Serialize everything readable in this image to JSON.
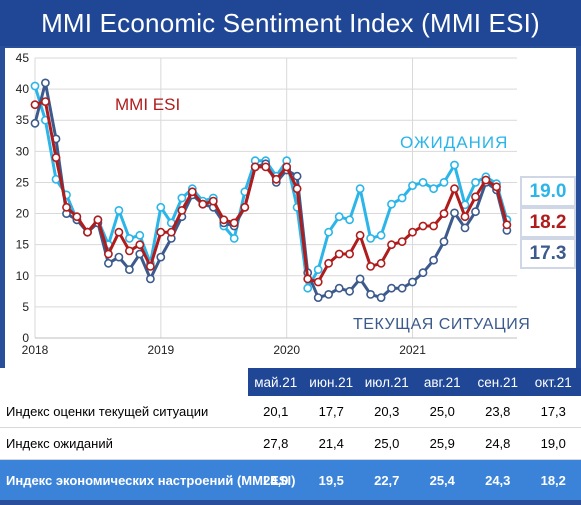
{
  "title": "MMI Economic Sentiment Index (MMI ESI)",
  "colors": {
    "header_bg": "#1f4796",
    "expectations": "#2bb5e8",
    "esi": "#b01c1c",
    "current": "#3c5a8c",
    "summary_row": "#3b83d9"
  },
  "chart_data": {
    "type": "line",
    "ylim": [
      0,
      45
    ],
    "yticks": [
      0,
      5,
      10,
      15,
      20,
      25,
      30,
      35,
      40,
      45
    ],
    "xlim": [
      2018.0,
      2021.83
    ],
    "xtick_labels": [
      "2018",
      "2019",
      "2020",
      "2021"
    ],
    "xtick_values": [
      2018,
      2019,
      2020,
      2021
    ],
    "grid": true,
    "annotations": {
      "esi": "MMI ESI",
      "expectations": "ОЖИДАНИЯ",
      "current": "ТЕКУЩАЯ СИТУАЦИЯ"
    },
    "last_values": [
      "19.0",
      "18.2",
      "17.3"
    ],
    "series": [
      {
        "key": "expectations",
        "x": [
          2018.0,
          2018.083,
          2018.167,
          2018.25,
          2018.333,
          2018.417,
          2018.5,
          2018.583,
          2018.667,
          2018.75,
          2018.833,
          2018.917,
          2019.0,
          2019.083,
          2019.167,
          2019.25,
          2019.333,
          2019.417,
          2019.5,
          2019.583,
          2019.667,
          2019.75,
          2019.833,
          2019.917,
          2020.0,
          2020.083,
          2020.167,
          2020.25,
          2020.333,
          2020.417,
          2020.5,
          2020.583,
          2020.667,
          2020.75,
          2020.833,
          2020.917,
          2021.0,
          2021.083,
          2021.167,
          2021.25,
          2021.333,
          2021.417,
          2021.5,
          2021.583,
          2021.667,
          2021.75
        ],
        "y": [
          40.5,
          35.0,
          25.5,
          23.0,
          19.0,
          17.0,
          19.0,
          15.0,
          20.5,
          16.0,
          16.5,
          12.0,
          21.0,
          18.5,
          22.5,
          24.0,
          22.0,
          22.5,
          18.0,
          16.0,
          23.5,
          28.5,
          28.5,
          26.0,
          28.5,
          21.0,
          8.0,
          11.0,
          17.0,
          19.5,
          19.0,
          24.0,
          16.0,
          16.5,
          21.5,
          22.5,
          24.5,
          25.0,
          24.0,
          25.0,
          27.8,
          21.4,
          25.0,
          25.9,
          24.8,
          19.0
        ]
      },
      {
        "key": "esi",
        "x": [
          2018.0,
          2018.083,
          2018.167,
          2018.25,
          2018.333,
          2018.417,
          2018.5,
          2018.583,
          2018.667,
          2018.75,
          2018.833,
          2018.917,
          2019.0,
          2019.083,
          2019.167,
          2019.25,
          2019.333,
          2019.417,
          2019.5,
          2019.583,
          2019.667,
          2019.75,
          2019.833,
          2019.917,
          2020.0,
          2020.083,
          2020.167,
          2020.25,
          2020.333,
          2020.417,
          2020.5,
          2020.583,
          2020.667,
          2020.75,
          2020.833,
          2020.917,
          2021.0,
          2021.083,
          2021.167,
          2021.25,
          2021.333,
          2021.417,
          2021.5,
          2021.583,
          2021.667,
          2021.75
        ],
        "y": [
          37.5,
          38.0,
          29.0,
          21.0,
          19.5,
          17.0,
          19.0,
          13.5,
          17.0,
          14.0,
          15.0,
          11.5,
          17.0,
          17.0,
          20.5,
          23.5,
          21.5,
          22.0,
          19.0,
          18.5,
          21.0,
          27.5,
          27.5,
          25.5,
          27.5,
          24.0,
          9.5,
          9.0,
          12.0,
          13.5,
          13.5,
          16.5,
          11.5,
          12.0,
          15.0,
          15.5,
          17.0,
          18.0,
          18.0,
          20.0,
          24.0,
          19.5,
          22.7,
          25.4,
          24.3,
          18.2
        ]
      },
      {
        "key": "current",
        "x": [
          2018.0,
          2018.083,
          2018.167,
          2018.25,
          2018.333,
          2018.417,
          2018.5,
          2018.583,
          2018.667,
          2018.75,
          2018.833,
          2018.917,
          2019.0,
          2019.083,
          2019.167,
          2019.25,
          2019.333,
          2019.417,
          2019.5,
          2019.583,
          2019.667,
          2019.75,
          2019.833,
          2019.917,
          2020.0,
          2020.083,
          2020.167,
          2020.25,
          2020.333,
          2020.417,
          2020.5,
          2020.583,
          2020.667,
          2020.75,
          2020.833,
          2020.917,
          2021.0,
          2021.083,
          2021.167,
          2021.25,
          2021.333,
          2021.417,
          2021.5,
          2021.583,
          2021.667,
          2021.75
        ],
        "y": [
          34.5,
          41.0,
          32.0,
          20.0,
          19.0,
          17.0,
          18.5,
          12.0,
          13.0,
          11.0,
          13.5,
          9.5,
          13.0,
          16.0,
          19.5,
          23.0,
          21.5,
          21.0,
          18.5,
          18.0,
          21.0,
          27.5,
          28.0,
          25.0,
          27.0,
          26.0,
          10.5,
          6.5,
          7.0,
          8.0,
          7.5,
          9.5,
          7.0,
          6.5,
          8.0,
          8.0,
          9.0,
          10.5,
          12.5,
          15.5,
          20.1,
          17.7,
          20.3,
          25.0,
          23.8,
          17.3
        ]
      }
    ]
  },
  "table": {
    "headers": [
      "май.21",
      "июн.21",
      "июл.21",
      "авг.21",
      "сен.21",
      "окт.21"
    ],
    "rows": [
      {
        "label": "Индекс оценки текущей ситуации",
        "values": [
          "20,1",
          "17,7",
          "20,3",
          "25,0",
          "23,8",
          "17,3"
        ]
      },
      {
        "label": "Индекс ожиданий",
        "values": [
          "27,8",
          "21,4",
          "25,0",
          "25,9",
          "24,8",
          "19,0"
        ]
      },
      {
        "label": "Индекс экономических настроений (MMI ESI)",
        "values": [
          "24,0",
          "19,5",
          "22,7",
          "25,4",
          "24,3",
          "18,2"
        ]
      }
    ]
  }
}
